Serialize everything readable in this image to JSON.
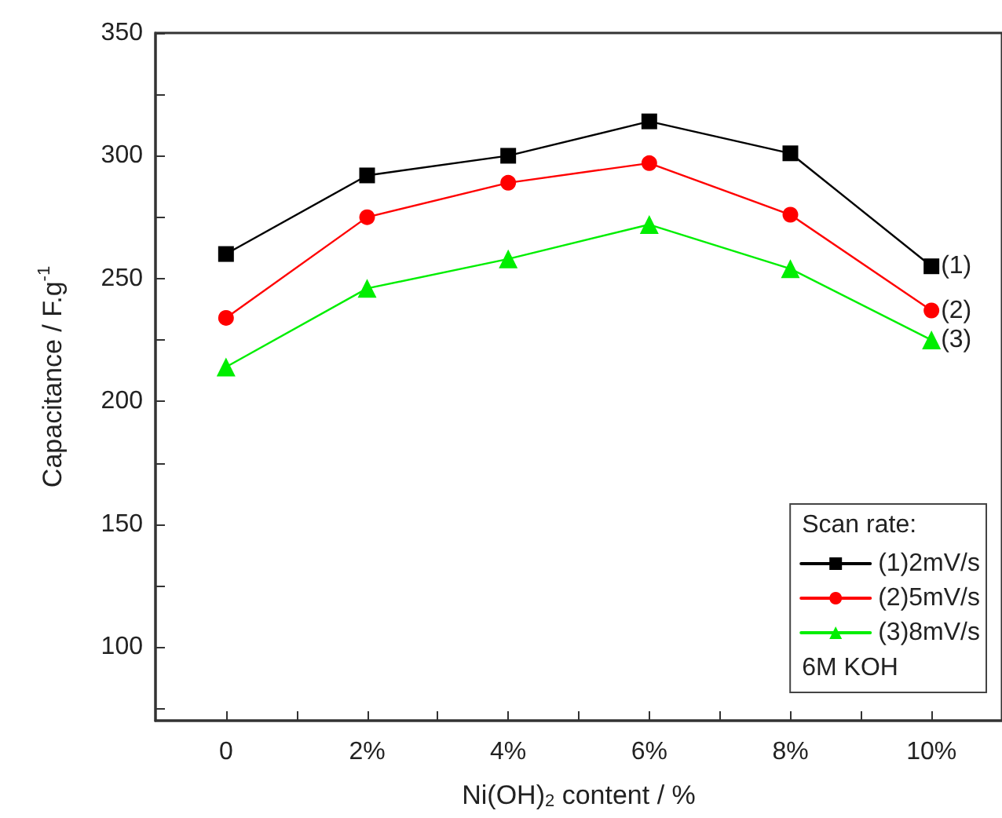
{
  "chart_data": {
    "type": "line",
    "xlabel": "Ni(OH)$_{2}$ content / %",
    "ylabel": "Capacitance / F.g$^{-1}$",
    "legend_title": "Scan rate:",
    "x": [
      0,
      2,
      4,
      6,
      8,
      10
    ],
    "series": [
      {
        "name": "(1)2mV/s",
        "color": "#000000",
        "marker": "square",
        "values": [
          260,
          292,
          300,
          314,
          301,
          255
        ]
      },
      {
        "name": "(2)5mV/s",
        "color": "#ff0000",
        "marker": "circle",
        "values": [
          234,
          275,
          289,
          297,
          276,
          237
        ]
      },
      {
        "name": "(3)8mV/s",
        "color": "#00ee00",
        "marker": "triangle",
        "values": [
          214,
          246,
          258,
          272,
          254,
          225
        ]
      }
    ],
    "xlim": [
      -1,
      11
    ],
    "xticks": [
      {
        "value": 0,
        "label": "0"
      },
      {
        "value": 1,
        "label": null
      },
      {
        "value": 2,
        "label": "2%"
      },
      {
        "value": 3,
        "label": null
      },
      {
        "value": 4,
        "label": "4%"
      },
      {
        "value": 5,
        "label": null
      },
      {
        "value": 6,
        "label": "6%"
      },
      {
        "value": 7,
        "label": null
      },
      {
        "value": 8,
        "label": "8%"
      },
      {
        "value": 9,
        "label": null
      },
      {
        "value": 10,
        "label": "10%"
      }
    ],
    "ylim": [
      70,
      350
    ],
    "yticks": [
      {
        "value": 75,
        "label": null
      },
      100,
      {
        "value": 125,
        "label": null
      },
      150,
      {
        "value": 175,
        "label": null
      },
      200,
      {
        "value": 225,
        "label": null
      },
      250,
      {
        "value": 275,
        "label": null
      },
      300,
      {
        "value": 325,
        "label": null
      },
      350
    ],
    "annotations": [
      "(1)",
      "(2)",
      "(3)",
      "6M KOH"
    ],
    "grid": false,
    "legend": "bottom right",
    "line_style": "solid"
  }
}
